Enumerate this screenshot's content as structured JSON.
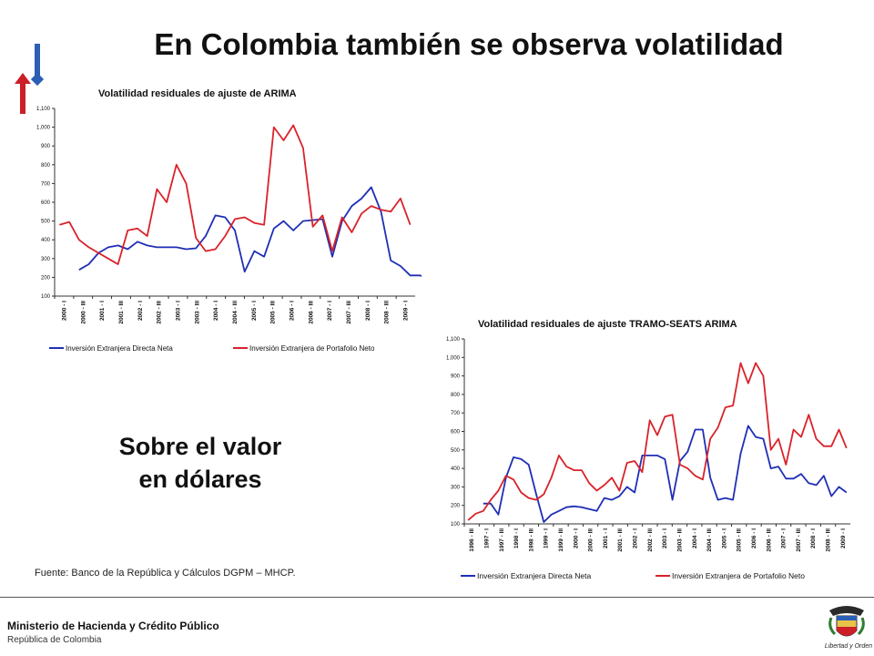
{
  "header": {
    "title": "En Colombia también se observa volatilidad"
  },
  "callout": {
    "line1": "Sobre el valor",
    "line2": "en dólares"
  },
  "source": "Fuente: Banco de la República y Cálculos DGPM – MHCP.",
  "footer": {
    "ministry": "Ministerio de Hacienda y Crédito Público",
    "republic": "República de Colombia",
    "seal_motto": "Libertad y Orden"
  },
  "colors": {
    "blue": "#1f2fb5",
    "red": "#d9222a"
  },
  "chart_data": [
    {
      "type": "line",
      "title": "Volatilidad residuales de ajuste de ARIMA",
      "ylim": [
        100,
        1100
      ],
      "yticks": [
        "100",
        "200",
        "300",
        "400",
        "500",
        "600",
        "700",
        "800",
        "900",
        "1,000",
        "1,100"
      ],
      "xticks": [
        "2000 - I",
        "2000 - III",
        "2001 - I",
        "2001 - III",
        "2002 - I",
        "2002 - III",
        "2003 - I",
        "2003 - III",
        "2004 - I",
        "2004 - III",
        "2005 - I",
        "2005 - III",
        "2006 - I",
        "2006 - III",
        "2007 - I",
        "2007 - III",
        "2008 - I",
        "2008 - III",
        "2009 - I"
      ],
      "n_points": 37,
      "legend_position": "bottom",
      "series": [
        {
          "name": "Inversión Extranjera Directa Neta",
          "color": "#1f2fb5",
          "start": 2,
          "values": [
            240,
            270,
            330,
            360,
            370,
            350,
            390,
            370,
            360,
            360,
            360,
            350,
            355,
            420,
            530,
            520,
            450,
            230,
            340,
            310,
            460,
            500,
            450,
            500,
            505,
            510,
            310,
            500,
            580,
            620,
            680,
            550,
            290,
            260,
            210,
            210,
            190
          ]
        },
        {
          "name": "Inversión Extranjera de Portafolio Neto",
          "color": "#d9222a",
          "start": 0,
          "values": [
            480,
            495,
            400,
            360,
            330,
            300,
            270,
            450,
            460,
            420,
            670,
            600,
            800,
            700,
            410,
            340,
            350,
            420,
            510,
            520,
            490,
            480,
            1000,
            930,
            1010,
            890,
            470,
            530,
            340,
            520,
            440,
            540,
            580,
            560,
            550,
            620,
            480
          ]
        }
      ]
    },
    {
      "type": "line",
      "title": "Volatilidad residuales de ajuste TRAMO-SEATS ARIMA",
      "ylim": [
        100,
        1100
      ],
      "yticks": [
        "100",
        "200",
        "300",
        "400",
        "500",
        "600",
        "700",
        "800",
        "900",
        "1,000",
        "1,100"
      ],
      "xticks": [
        "1996 - III",
        "1997 - I",
        "1997 - III",
        "1998 - I",
        "1998 - III",
        "1999 - I",
        "1999 - III",
        "2000 - I",
        "2000 - III",
        "2001 - I",
        "2001 - III",
        "2002 - I",
        "2002 - III",
        "2003 - I",
        "2003 - III",
        "2004 - I",
        "2004 - III",
        "2005 - I",
        "2005 - III",
        "2006 - I",
        "2006 - III",
        "2007 - I",
        "2007 - III",
        "2008 - I",
        "2008 - III",
        "2009 - I"
      ],
      "n_points": 51,
      "legend_position": "bottom",
      "series": [
        {
          "name": "Inversión Extranjera Directa Neta",
          "color": "#1f2fb5",
          "start": 2,
          "values": [
            210,
            210,
            150,
            350,
            460,
            450,
            420,
            260,
            110,
            150,
            170,
            190,
            195,
            190,
            180,
            170,
            240,
            230,
            250,
            300,
            270,
            470,
            470,
            470,
            450,
            230,
            440,
            490,
            610,
            610,
            350,
            230,
            240,
            230,
            480,
            630,
            570,
            560,
            400,
            410,
            345,
            345,
            370,
            320,
            310,
            360,
            250,
            300,
            270
          ]
        },
        {
          "name": "Inversión Extranjera de Portafolio Neto",
          "color": "#d9222a",
          "start": 0,
          "values": [
            120,
            155,
            170,
            230,
            280,
            360,
            340,
            270,
            240,
            230,
            260,
            350,
            470,
            410,
            390,
            390,
            320,
            280,
            310,
            350,
            280,
            430,
            440,
            380,
            660,
            580,
            680,
            690,
            420,
            400,
            360,
            340,
            560,
            620,
            730,
            740,
            970,
            860,
            970,
            900,
            500,
            560,
            420,
            610,
            570,
            690,
            560,
            520,
            520,
            610,
            510
          ]
        }
      ]
    }
  ]
}
